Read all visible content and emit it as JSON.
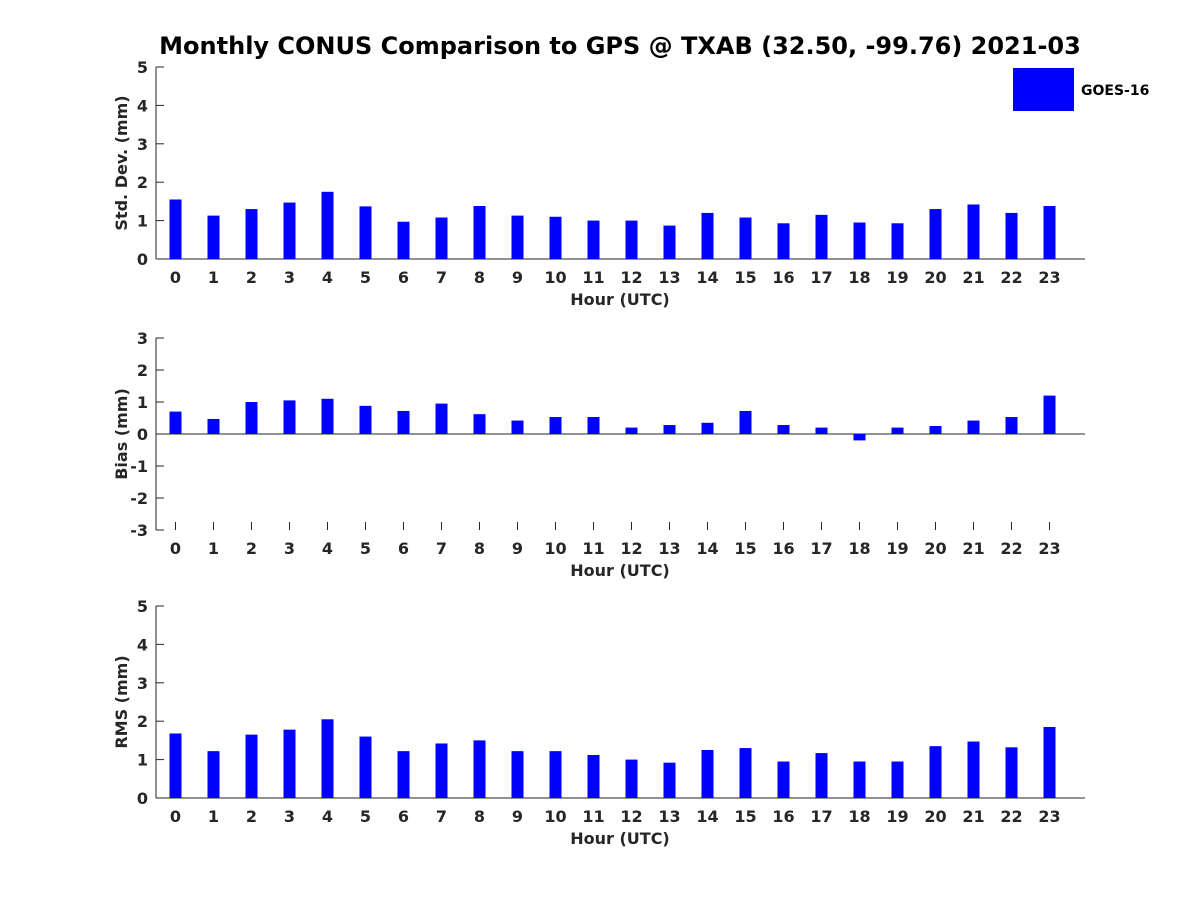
{
  "title": "Monthly CONUS Comparison to GPS @ TXAB (32.50, -99.76) 2021-03",
  "legend": {
    "label": "GOES-16",
    "color": "#0000ff",
    "position": "top-right"
  },
  "chart_data": [
    {
      "type": "bar",
      "ylabel": "Std. Dev. (mm)",
      "xlabel": "Hour (UTC)",
      "ylim": [
        0,
        5
      ],
      "yticks": [
        "0",
        "1",
        "2",
        "3",
        "4",
        "5"
      ],
      "categories": [
        "0",
        "1",
        "2",
        "3",
        "4",
        "5",
        "6",
        "7",
        "8",
        "9",
        "10",
        "11",
        "12",
        "13",
        "14",
        "15",
        "16",
        "17",
        "18",
        "19",
        "20",
        "21",
        "22",
        "23"
      ],
      "series": [
        {
          "name": "GOES-16",
          "values": [
            1.55,
            1.13,
            1.3,
            1.47,
            1.75,
            1.37,
            0.97,
            1.08,
            1.38,
            1.13,
            1.1,
            1.0,
            1.0,
            0.87,
            1.2,
            1.08,
            0.93,
            1.15,
            0.95,
            0.93,
            1.3,
            1.42,
            1.2,
            1.38
          ]
        }
      ]
    },
    {
      "type": "bar",
      "ylabel": "Bias (mm)",
      "xlabel": "Hour (UTC)",
      "ylim": [
        -3,
        3
      ],
      "yticks": [
        "-3",
        "-2",
        "-1",
        "0",
        "1",
        "2",
        "3"
      ],
      "categories": [
        "0",
        "1",
        "2",
        "3",
        "4",
        "5",
        "6",
        "7",
        "8",
        "9",
        "10",
        "11",
        "12",
        "13",
        "14",
        "15",
        "16",
        "17",
        "18",
        "19",
        "20",
        "21",
        "22",
        "23"
      ],
      "series": [
        {
          "name": "GOES-16",
          "values": [
            0.7,
            0.47,
            1.0,
            1.05,
            1.1,
            0.88,
            0.72,
            0.95,
            0.62,
            0.42,
            0.53,
            0.53,
            0.2,
            0.28,
            0.35,
            0.72,
            0.28,
            0.2,
            -0.2,
            0.2,
            0.25,
            0.42,
            0.53,
            1.2
          ]
        }
      ]
    },
    {
      "type": "bar",
      "ylabel": "RMS (mm)",
      "xlabel": "Hour (UTC)",
      "ylim": [
        0,
        5
      ],
      "yticks": [
        "0",
        "1",
        "2",
        "3",
        "4",
        "5"
      ],
      "categories": [
        "0",
        "1",
        "2",
        "3",
        "4",
        "5",
        "6",
        "7",
        "8",
        "9",
        "10",
        "11",
        "12",
        "13",
        "14",
        "15",
        "16",
        "17",
        "18",
        "19",
        "20",
        "21",
        "22",
        "23"
      ],
      "series": [
        {
          "name": "GOES-16",
          "values": [
            1.68,
            1.22,
            1.65,
            1.78,
            2.05,
            1.6,
            1.22,
            1.42,
            1.5,
            1.22,
            1.22,
            1.12,
            1.0,
            0.92,
            1.25,
            1.3,
            0.95,
            1.17,
            0.95,
            0.95,
            1.35,
            1.47,
            1.32,
            1.85
          ]
        }
      ]
    }
  ]
}
